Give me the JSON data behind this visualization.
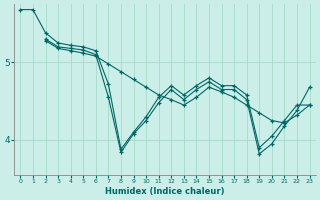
{
  "xlabel": "Humidex (Indice chaleur)",
  "bg_color": "#cceee8",
  "grid_color": "#aaddcc",
  "line_color": "#006666",
  "xlim": [
    -0.5,
    23.5
  ],
  "ylim": [
    3.55,
    5.75
  ],
  "yticks": [
    4,
    5
  ],
  "xticks": [
    0,
    1,
    2,
    3,
    4,
    5,
    6,
    7,
    8,
    9,
    10,
    11,
    12,
    13,
    14,
    15,
    16,
    17,
    18,
    19,
    20,
    21,
    22,
    23
  ],
  "lines": [
    {
      "x": [
        0,
        1,
        2,
        3,
        4,
        5,
        6,
        7,
        8,
        9,
        10,
        11,
        12,
        13,
        14,
        15,
        16,
        17,
        18,
        19,
        20,
        21,
        22,
        23
      ],
      "y": [
        5.68,
        5.68,
        5.38,
        5.25,
        5.22,
        5.2,
        5.15,
        4.72,
        3.88,
        4.1,
        4.3,
        4.55,
        4.7,
        4.58,
        4.7,
        4.8,
        4.7,
        4.7,
        4.58,
        3.9,
        4.05,
        4.25,
        4.45,
        4.45
      ]
    },
    {
      "x": [
        2,
        3,
        4,
        5,
        6,
        7,
        8,
        9,
        10,
        11,
        12,
        13,
        14,
        15,
        16,
        17,
        18,
        19,
        20,
        21,
        22,
        23
      ],
      "y": [
        5.3,
        5.2,
        5.18,
        5.16,
        5.1,
        4.55,
        3.84,
        4.08,
        4.25,
        4.48,
        4.65,
        4.52,
        4.65,
        4.75,
        4.65,
        4.65,
        4.52,
        3.82,
        3.95,
        4.18,
        4.38,
        4.68
      ]
    },
    {
      "x": [
        2,
        3,
        4,
        5,
        6,
        7,
        8,
        9,
        10,
        11,
        12,
        13,
        14,
        15,
        16,
        17,
        18,
        19,
        20,
        21,
        22,
        23
      ],
      "y": [
        5.28,
        5.18,
        5.15,
        5.12,
        5.08,
        4.98,
        4.88,
        4.78,
        4.68,
        4.58,
        4.52,
        4.45,
        4.55,
        4.68,
        4.62,
        4.55,
        4.45,
        4.35,
        4.25,
        4.22,
        4.32,
        4.45
      ]
    }
  ]
}
